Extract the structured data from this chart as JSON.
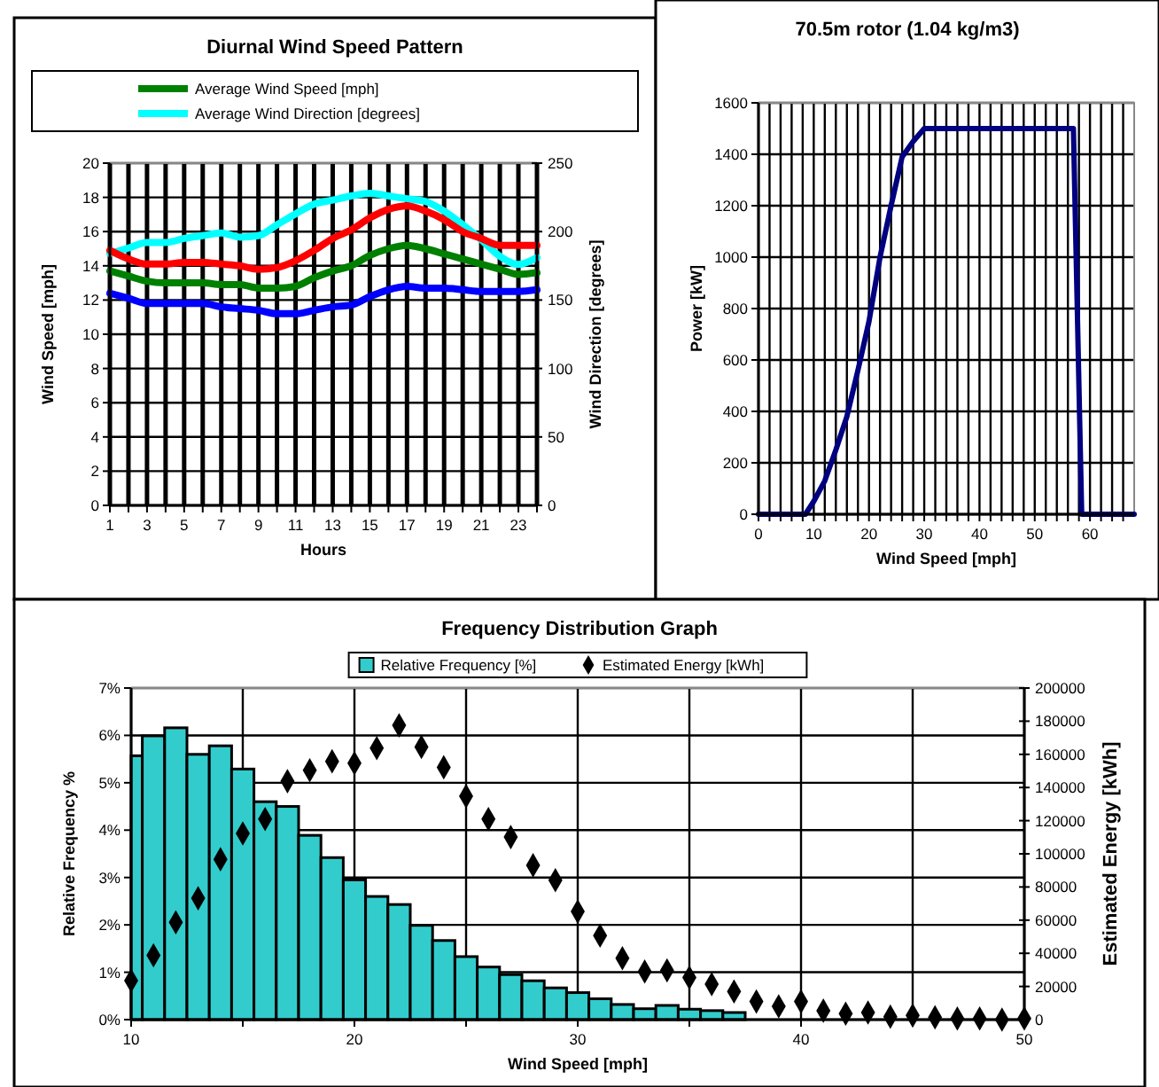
{
  "chart_data": [
    {
      "type": "line",
      "title": "Diurnal Wind Speed Pattern",
      "xlabel": "Hours",
      "ylabel": "Wind Speed [mph]",
      "y2label": "Wind Direction [degrees]",
      "x": [
        1,
        2,
        3,
        4,
        5,
        6,
        7,
        8,
        9,
        10,
        11,
        12,
        13,
        14,
        15,
        16,
        17,
        18,
        19,
        20,
        21,
        22,
        23,
        24
      ],
      "xlim": [
        1,
        24
      ],
      "xticks": [
        1,
        {
          "value": 2,
          "label": null
        },
        3,
        {
          "value": 4,
          "label": null
        },
        5,
        {
          "value": 6,
          "label": null
        },
        7,
        {
          "value": 8,
          "label": null
        },
        9,
        {
          "value": 10,
          "label": null
        },
        11,
        {
          "value": 12,
          "label": null
        },
        13,
        {
          "value": 14,
          "label": null
        },
        15,
        {
          "value": 16,
          "label": null
        },
        17,
        {
          "value": 18,
          "label": null
        },
        19,
        {
          "value": 20,
          "label": null
        },
        21,
        {
          "value": 22,
          "label": null
        },
        23,
        {
          "value": 24,
          "label": null
        }
      ],
      "ylim": [
        0,
        20
      ],
      "yticks": [
        0,
        2,
        4,
        6,
        8,
        10,
        12,
        14,
        16,
        18,
        20
      ],
      "y2lim": [
        0,
        250
      ],
      "y2ticks": [
        0,
        50,
        100,
        150,
        200,
        250
      ],
      "grid": true,
      "legend": "top",
      "line_style": "solid",
      "series": [
        {
          "name": "Average Wind Speed [mph]",
          "color": "#008000",
          "values": [
            13.7,
            13.4,
            13.1,
            13.0,
            13.0,
            13.0,
            12.9,
            12.9,
            12.7,
            12.7,
            12.8,
            13.3,
            13.7,
            14.0,
            14.6,
            15.0,
            15.2,
            15.0,
            14.7,
            14.4,
            14.1,
            13.8,
            13.5,
            13.6
          ]
        },
        {
          "name": "Average Wind Direction [degrees]",
          "color": "#00ffff",
          "axis": "y2",
          "values": [
            184,
            188,
            192,
            192,
            195,
            197,
            199,
            196,
            197,
            205,
            213,
            220,
            223,
            226,
            228,
            226,
            224,
            222,
            215,
            205,
            194,
            182,
            176,
            181
          ]
        },
        {
          "color": "#ff0000",
          "values": [
            14.9,
            14.4,
            14.1,
            14.1,
            14.2,
            14.2,
            14.1,
            14.0,
            13.8,
            13.9,
            14.3,
            14.9,
            15.6,
            16.1,
            16.8,
            17.3,
            17.5,
            17.2,
            16.7,
            16.0,
            15.6,
            15.2,
            15.2,
            15.2
          ]
        },
        {
          "color": "#0000ff",
          "values": [
            12.4,
            12.1,
            11.8,
            11.8,
            11.8,
            11.8,
            11.6,
            11.5,
            11.4,
            11.2,
            11.2,
            11.4,
            11.6,
            11.7,
            12.2,
            12.6,
            12.8,
            12.7,
            12.7,
            12.6,
            12.5,
            12.5,
            12.5,
            12.6
          ]
        }
      ]
    },
    {
      "type": "line",
      "title": "70.5m rotor (1.04 kg/m3)",
      "xlabel": "Wind Speed [mph]",
      "ylabel": "Power [kW]",
      "xlim": [
        0,
        68
      ],
      "xticks": [
        0,
        {
          "value": 2,
          "label": null
        },
        {
          "value": 4,
          "label": null
        },
        {
          "value": 6,
          "label": null
        },
        {
          "value": 8,
          "label": null
        },
        10,
        {
          "value": 12,
          "label": null
        },
        {
          "value": 14,
          "label": null
        },
        {
          "value": 16,
          "label": null
        },
        {
          "value": 18,
          "label": null
        },
        20,
        {
          "value": 22,
          "label": null
        },
        {
          "value": 24,
          "label": null
        },
        {
          "value": 26,
          "label": null
        },
        {
          "value": 28,
          "label": null
        },
        30,
        {
          "value": 32,
          "label": null
        },
        {
          "value": 34,
          "label": null
        },
        {
          "value": 36,
          "label": null
        },
        {
          "value": 38,
          "label": null
        },
        40,
        {
          "value": 42,
          "label": null
        },
        {
          "value": 44,
          "label": null
        },
        {
          "value": 46,
          "label": null
        },
        {
          "value": 48,
          "label": null
        },
        50,
        {
          "value": 52,
          "label": null
        },
        {
          "value": 54,
          "label": null
        },
        {
          "value": 56,
          "label": null
        },
        {
          "value": 58,
          "label": null
        },
        60,
        {
          "value": 62,
          "label": null
        },
        {
          "value": 64,
          "label": null
        },
        {
          "value": 66,
          "label": null
        }
      ],
      "ylim": [
        0,
        1600
      ],
      "yticks": [
        0,
        200,
        400,
        600,
        800,
        1000,
        1200,
        1400,
        1600
      ],
      "grid": true,
      "series": [
        {
          "color": "#000080",
          "x": [
            0,
            8.5,
            10,
            12,
            14,
            16,
            18,
            20,
            22,
            24,
            26,
            28,
            30,
            57,
            57.5,
            58.5,
            68
          ],
          "values": [
            0,
            0,
            50,
            130,
            250,
            380,
            560,
            750,
            1000,
            1200,
            1390,
            1450,
            1500,
            1500,
            1000,
            0,
            0
          ]
        }
      ]
    },
    {
      "type": "histogram",
      "title": "Frequency Distribution Graph",
      "xlabel": "Wind Speed [mph]",
      "ylabel": "Relative Frequency %",
      "y2label": "Estimated Energy [kWh]",
      "bins": [
        10,
        10.5,
        11.5,
        12.5,
        13.5,
        14.5,
        15.5,
        16.5,
        17.5,
        18.5,
        19.5,
        20.5,
        21.5,
        22.5,
        23.5,
        24.5,
        25.5,
        26.5,
        27.5,
        28.5,
        29.5,
        30.5,
        31.5,
        32.5,
        33.5,
        34.5,
        35.5,
        36.5,
        37.5
      ],
      "xlim": [
        10,
        50
      ],
      "xticks": [
        10,
        {
          "value": 15,
          "label": null
        },
        20,
        {
          "value": 25,
          "label": null
        },
        30,
        {
          "value": 35,
          "label": null
        },
        40,
        {
          "value": 45,
          "label": null
        },
        50
      ],
      "ylim": [
        0,
        7
      ],
      "yticks": [
        {
          "value": 0,
          "label": "0%"
        },
        {
          "value": 1,
          "label": "1%"
        },
        {
          "value": 2,
          "label": "2%"
        },
        {
          "value": 3,
          "label": "3%"
        },
        {
          "value": 4,
          "label": "4%"
        },
        {
          "value": 5,
          "label": "5%"
        },
        {
          "value": 6,
          "label": "6%"
        },
        {
          "value": 7,
          "label": "7%"
        }
      ],
      "y2lim": [
        0,
        200000
      ],
      "y2ticks": [
        0,
        20000,
        40000,
        60000,
        80000,
        100000,
        120000,
        140000,
        160000,
        180000,
        200000
      ],
      "grid": true,
      "legend": "top",
      "marker": "diamond",
      "series": [
        {
          "name": "Relative Frequency [%]",
          "color": "#33cccc",
          "values": [
            5.57,
            5.99,
            6.16,
            5.6,
            5.78,
            5.29,
            4.6,
            4.5,
            3.89,
            3.42,
            2.95,
            2.6,
            2.43,
            1.99,
            1.67,
            1.33,
            1.11,
            0.95,
            0.82,
            0.67,
            0.57,
            0.44,
            0.32,
            0.23,
            0.3,
            0.22,
            0.19,
            0.15
          ]
        },
        {
          "name": "Estimated Energy [kWh]",
          "type": "scatter",
          "axis": "y2",
          "color": "#000000",
          "x": [
            10,
            11,
            12,
            13,
            14,
            15,
            16,
            17,
            18,
            19,
            20,
            21,
            22,
            23,
            24,
            25,
            26,
            27,
            28,
            29,
            30,
            31,
            32,
            33,
            34,
            35,
            36,
            37,
            38,
            39,
            40,
            41,
            42,
            43,
            44,
            45,
            46,
            47,
            48,
            49,
            50
          ],
          "values": [
            23500,
            38800,
            58700,
            73200,
            96700,
            112300,
            121000,
            143800,
            150400,
            155800,
            154700,
            163800,
            177500,
            164500,
            152200,
            134800,
            121000,
            110100,
            93100,
            84100,
            65200,
            50700,
            37000,
            29000,
            29700,
            25400,
            21400,
            17000,
            10900,
            8000,
            10900,
            5400,
            3600,
            4300,
            1800,
            2500,
            1400,
            700,
            700,
            0,
            700
          ]
        }
      ]
    }
  ]
}
